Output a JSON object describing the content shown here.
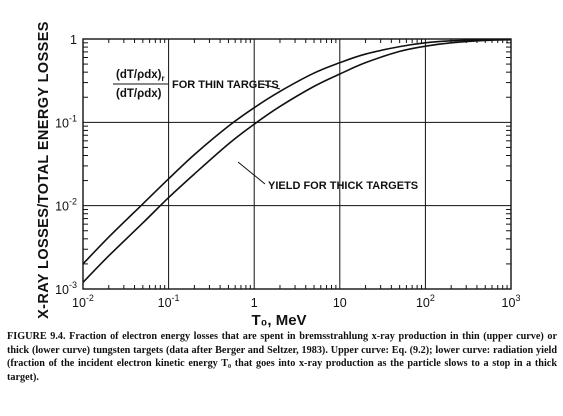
{
  "chart_data": {
    "type": "line",
    "x_scale": "log",
    "y_scale": "log",
    "xlim": [
      0.01,
      1000
    ],
    "ylim": [
      0.001,
      1
    ],
    "xlabel": "T₀, MeV",
    "ylabel": "X-RAY LOSSES/TOTAL ENERGY LOSSES",
    "x_ticks": [
      {
        "value": 0.01,
        "base": "10",
        "exp": "-2"
      },
      {
        "value": 0.1,
        "base": "10",
        "exp": "-1"
      },
      {
        "value": 1,
        "base": "1",
        "exp": ""
      },
      {
        "value": 10,
        "base": "10",
        "exp": ""
      },
      {
        "value": 100,
        "base": "10",
        "exp": "2"
      },
      {
        "value": 1000,
        "base": "10",
        "exp": "3"
      }
    ],
    "y_ticks": [
      {
        "value": 0.001,
        "base": "10",
        "exp": "-3"
      },
      {
        "value": 0.01,
        "base": "10",
        "exp": "-2"
      },
      {
        "value": 0.1,
        "base": "10",
        "exp": "-1"
      },
      {
        "value": 1,
        "base": "1",
        "exp": ""
      }
    ],
    "grid": true,
    "series": [
      {
        "key": "thin",
        "x": [
          0.01,
          0.02,
          0.05,
          0.1,
          0.2,
          0.5,
          1,
          2,
          5,
          10,
          20,
          50,
          100,
          200,
          500,
          1000
        ],
        "y": [
          0.002,
          0.0042,
          0.0105,
          0.021,
          0.041,
          0.09,
          0.15,
          0.235,
          0.39,
          0.52,
          0.66,
          0.81,
          0.9,
          0.95,
          0.98,
          0.99
        ]
      },
      {
        "key": "thick",
        "x": [
          0.01,
          0.02,
          0.05,
          0.1,
          0.2,
          0.5,
          1,
          2,
          5,
          10,
          20,
          50,
          100,
          200,
          500,
          1000
        ],
        "y": [
          0.0012,
          0.0025,
          0.0062,
          0.0125,
          0.024,
          0.055,
          0.095,
          0.155,
          0.27,
          0.38,
          0.52,
          0.71,
          0.82,
          0.9,
          0.96,
          0.98
        ]
      }
    ],
    "annotations": {
      "thin_label": "FOR THIN TARGETS",
      "ratio_numerator": "(dT/ρdx)",
      "ratio_numerator_sub": "r",
      "ratio_denominator": "(dT/ρdx)",
      "thick_label": "YIELD FOR THICK TARGETS"
    }
  },
  "caption": {
    "figure_label": "FIGURE 9.4.",
    "text": "Fraction of electron energy losses that are spent in bremsstrahlung x-ray production in thin (upper curve) or thick (lower curve) tungsten targets (data after Berger and Seltzer, 1983). Upper curve: Eq. (9.2); lower curve: radiation yield (fraction of the incident electron kinetic energy T₀ that goes into x-ray production as the particle slows to a stop in a thick target)."
  },
  "colors": {
    "ink": "#111111",
    "background": "#ffffff"
  }
}
